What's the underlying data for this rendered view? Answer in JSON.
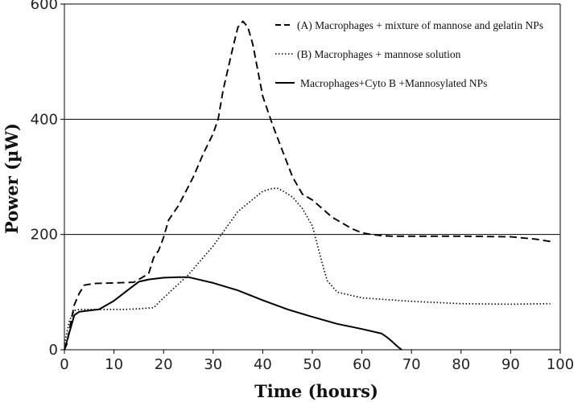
{
  "chart_data": {
    "type": "line",
    "title": "",
    "xlabel": "Time (hours)",
    "ylabel": "Power (µW)",
    "xlim": [
      0,
      100
    ],
    "ylim": [
      0,
      600
    ],
    "xticks": [
      0,
      10,
      20,
      30,
      40,
      50,
      60,
      70,
      80,
      90,
      100
    ],
    "yticks": [
      0,
      200,
      400,
      600
    ],
    "grid": "horizontal at 200, 400, 600",
    "legend_position": "top-right",
    "series": [
      {
        "name": "(A) Macrophages + mixture of mannose and gelatin NPs",
        "style": "dashed",
        "color": "#000000",
        "x": [
          0,
          0.5,
          1,
          2,
          3,
          3.5,
          4,
          6,
          10,
          14,
          17,
          18,
          19,
          20,
          21,
          23,
          26,
          28,
          30,
          31,
          32,
          34,
          35,
          36,
          37,
          38,
          40,
          42,
          44,
          46,
          48,
          50,
          52,
          54,
          56,
          58,
          60,
          62,
          64,
          66,
          70,
          80,
          90,
          95,
          98
        ],
        "y": [
          0,
          10,
          35,
          78,
          98,
          105,
          112,
          115,
          116,
          117,
          132,
          160,
          172,
          195,
          225,
          250,
          300,
          340,
          375,
          400,
          450,
          525,
          560,
          570,
          560,
          530,
          440,
          390,
          345,
          300,
          270,
          260,
          245,
          230,
          220,
          210,
          203,
          200,
          198,
          197,
          197,
          197,
          196,
          192,
          188
        ]
      },
      {
        "name": "(B) Macrophages + mannose solution",
        "style": "dotted",
        "color": "#000000",
        "x": [
          0,
          1,
          2,
          3,
          5,
          8,
          12,
          15,
          18,
          20,
          25,
          30,
          35,
          40,
          42,
          43,
          44,
          46,
          48,
          50,
          52,
          53,
          55,
          60,
          70,
          80,
          90,
          98
        ],
        "y": [
          10,
          50,
          68,
          70,
          70,
          70,
          70,
          71,
          73,
          90,
          130,
          180,
          240,
          275,
          280,
          280,
          276,
          265,
          245,
          215,
          150,
          120,
          100,
          90,
          84,
          80,
          79,
          80
        ]
      },
      {
        "name": "Macrophages+Cyto B +Mannosylated NPs",
        "style": "solid",
        "color": "#000000",
        "x": [
          0,
          1,
          2,
          3,
          5,
          7,
          10,
          13,
          15,
          17,
          20,
          23,
          25,
          30,
          35,
          40,
          45,
          50,
          55,
          60,
          64,
          65,
          66,
          67,
          68
        ],
        "y": [
          0,
          30,
          60,
          66,
          68,
          70,
          85,
          105,
          118,
          122,
          125,
          126,
          126,
          116,
          103,
          86,
          70,
          57,
          45,
          36,
          28,
          22,
          15,
          7,
          0
        ]
      }
    ]
  }
}
